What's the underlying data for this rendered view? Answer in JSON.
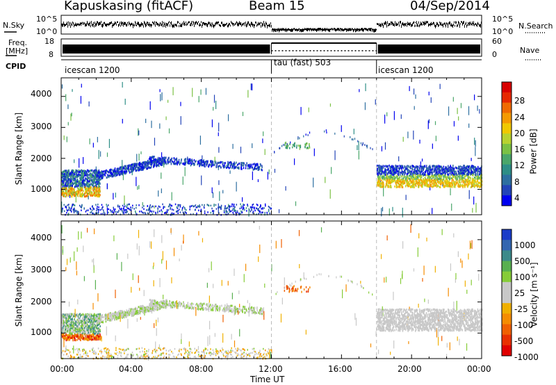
{
  "header": {
    "station": "Kapuskasing (fitACF)",
    "beam": "Beam 15",
    "date": "04/Sep/2014"
  },
  "summary_panels": {
    "nsky_label": "N.Sky",
    "nsky_ticks": [
      "10^5",
      "10^0"
    ],
    "nsearch_label": "N.Search",
    "freq_label_line1": "Freq.",
    "freq_label_line2": "[MHz]",
    "freq_ticks": [
      "18",
      "8"
    ],
    "nave_ticks": [
      "60",
      "0"
    ],
    "nave_label": "Nave",
    "cpid_label": "CPID",
    "cpid_segments": [
      {
        "name": "icescan 1200",
        "start_hour": 0
      },
      {
        "name": "tau (fast) 503",
        "start_hour": 12
      },
      {
        "name": "icescan 1200",
        "start_hour": 18
      }
    ]
  },
  "chart_data": [
    {
      "type": "heatmap",
      "name": "power",
      "ylabel": "Slant Range [km]",
      "xlabel": "",
      "x_range_hours": [
        0,
        24
      ],
      "ylim": [
        180,
        4600
      ],
      "y_ticks": [
        "4000",
        "3000",
        "2000",
        "1000"
      ],
      "colorbar_label": "Power [dB]",
      "colorbar_ticks": [
        "28",
        "24",
        "20",
        "16",
        "12",
        "8",
        "4"
      ],
      "colors": [
        "#0000f0",
        "#2244b8",
        "#2d6fa0",
        "#2e8e86",
        "#4aa66a",
        "#7bc144",
        "#b8d230",
        "#f0c800",
        "#f59a00",
        "#f06a00",
        "#e62800",
        "#d80000"
      ]
    },
    {
      "type": "heatmap",
      "name": "velocity",
      "ylabel": "Slant Range [km]",
      "xlabel": "Time UT",
      "x_range_hours": [
        0,
        24
      ],
      "x_ticks": [
        "00:00",
        "04:00",
        "08:00",
        "12:00",
        "16:00",
        "20:00",
        "00:00"
      ],
      "ylim": [
        180,
        4600
      ],
      "y_ticks": [
        "4000",
        "3000",
        "2000",
        "1000"
      ],
      "colorbar_label": "Velocity [m s⁻¹]",
      "colorbar_ticks": [
        "1000",
        "500",
        "100",
        "25",
        "-25",
        "-100",
        "-500",
        "-1000"
      ],
      "colors": [
        "#1a3cc8",
        "#3366b0",
        "#3c8a8a",
        "#58b050",
        "#86cc38",
        "#c8c8c8",
        "#c8c8c8",
        "#f0b000",
        "#f58c00",
        "#f06000",
        "#e83000",
        "#e00000"
      ]
    }
  ]
}
